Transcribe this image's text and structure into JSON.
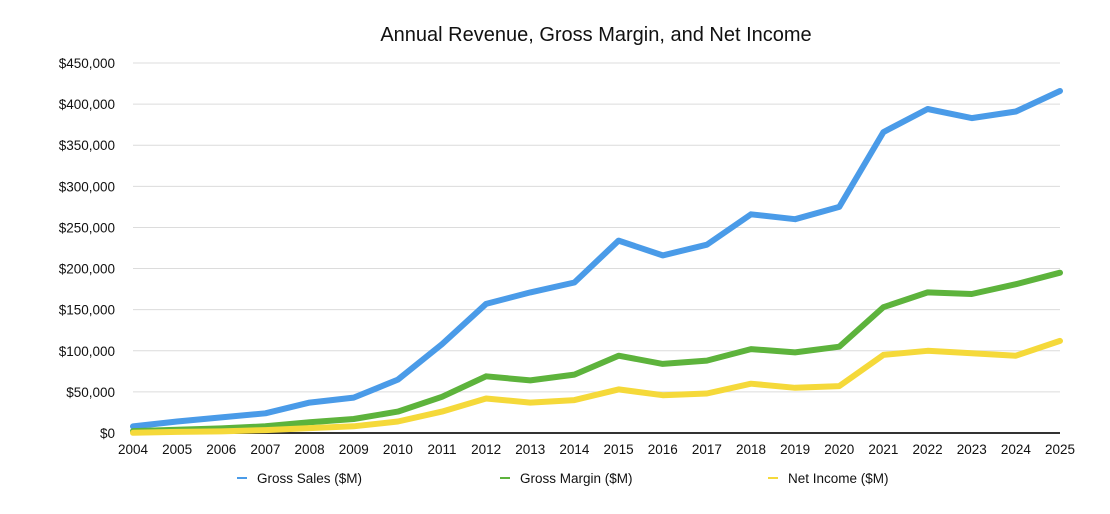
{
  "chart_data": {
    "type": "line",
    "title": "Annual Revenue, Gross Margin, and Net Income",
    "xlabel": "",
    "ylabel": "",
    "ylim": [
      0,
      450000
    ],
    "yticks": [
      0,
      50000,
      100000,
      150000,
      200000,
      250000,
      300000,
      350000,
      400000,
      450000
    ],
    "ytick_labels": [
      "$0",
      "$50,000",
      "$100,000",
      "$150,000",
      "$200,000",
      "$250,000",
      "$300,000",
      "$350,000",
      "$400,000",
      "$450,000"
    ],
    "grid": true,
    "legend_position": "bottom",
    "categories": [
      "2004",
      "2005",
      "2006",
      "2007",
      "2008",
      "2009",
      "2010",
      "2011",
      "2012",
      "2013",
      "2014",
      "2015",
      "2016",
      "2017",
      "2018",
      "2019",
      "2020",
      "2021",
      "2022",
      "2023",
      "2024",
      "2025"
    ],
    "series": [
      {
        "name": "Gross Sales ($M)",
        "color": "#4a9be8",
        "values": [
          8000,
          14000,
          19000,
          24000,
          37000,
          43000,
          65000,
          108000,
          157000,
          171000,
          183000,
          234000,
          216000,
          229000,
          266000,
          260000,
          275000,
          366000,
          394000,
          383000,
          391000,
          416000
        ]
      },
      {
        "name": "Gross Margin ($M)",
        "color": "#5db33c",
        "values": [
          2300,
          4000,
          5600,
          8200,
          13000,
          17000,
          26000,
          44000,
          69000,
          64000,
          71000,
          94000,
          84000,
          88000,
          102000,
          98000,
          105000,
          153000,
          171000,
          169000,
          181000,
          195000
        ]
      },
      {
        "name": "Net Income ($M)",
        "color": "#f5d93a",
        "values": [
          300,
          1300,
          2000,
          3500,
          6000,
          8200,
          14000,
          26000,
          42000,
          37000,
          40000,
          53000,
          46000,
          48000,
          60000,
          55000,
          57000,
          95000,
          100000,
          97000,
          94000,
          112000
        ]
      }
    ]
  }
}
